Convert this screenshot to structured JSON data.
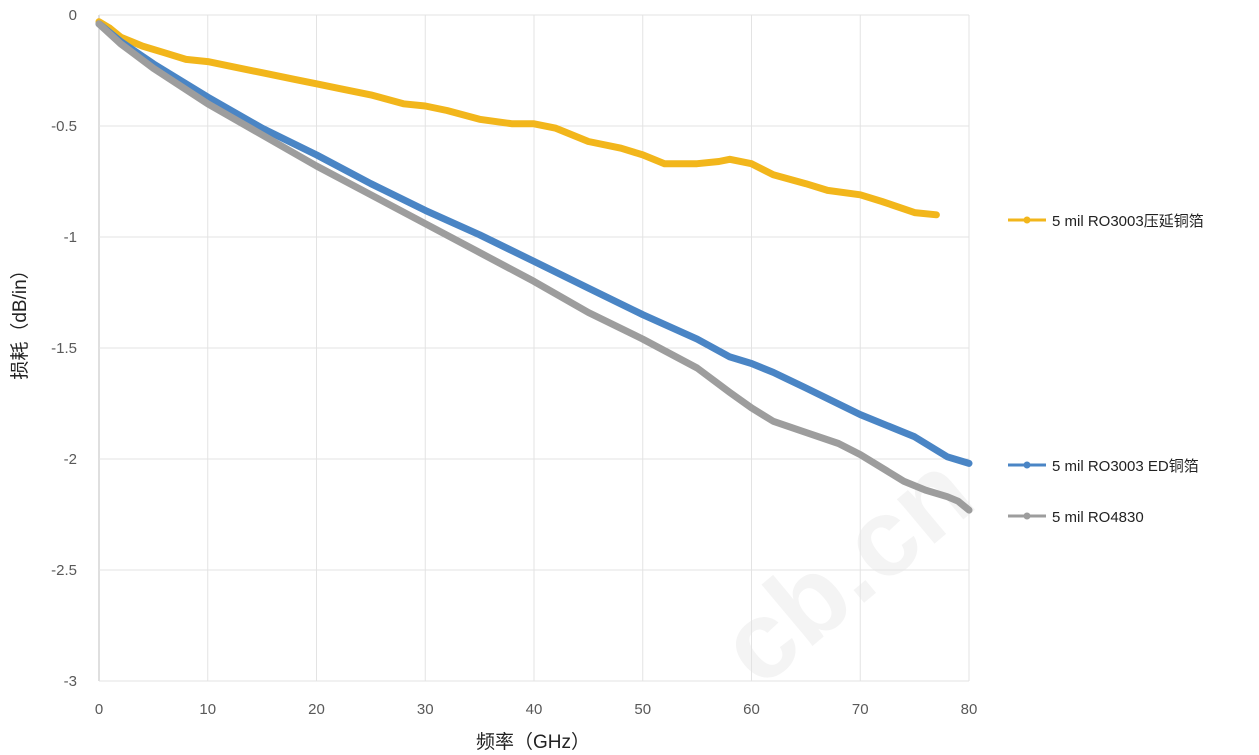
{
  "chart_data": {
    "type": "line",
    "xlabel": "频率（GHz）",
    "ylabel": "损耗（dB/in）",
    "xlim": [
      0,
      80
    ],
    "ylim": [
      -3,
      0
    ],
    "x_ticks": [
      "0",
      "10",
      "20",
      "30",
      "40",
      "50",
      "60",
      "70",
      "80"
    ],
    "y_ticks": [
      "0",
      "-0.5",
      "-1",
      "-1.5",
      "-2",
      "-2.5",
      "-3"
    ],
    "grid": true,
    "legend_position": "right",
    "series": [
      {
        "name": "5 mil RO3003压延铜箔",
        "color": "#f2b61b",
        "x": [
          0,
          1,
          2,
          3,
          4,
          6,
          8,
          10,
          12,
          15,
          18,
          20,
          22,
          25,
          28,
          30,
          32,
          35,
          38,
          40,
          42,
          45,
          48,
          50,
          52,
          55,
          57,
          58,
          60,
          62,
          65,
          67,
          70,
          72,
          75,
          77
        ],
        "y": [
          -0.03,
          -0.06,
          -0.1,
          -0.12,
          -0.14,
          -0.17,
          -0.2,
          -0.21,
          -0.23,
          -0.26,
          -0.29,
          -0.31,
          -0.33,
          -0.36,
          -0.4,
          -0.41,
          -0.43,
          -0.47,
          -0.49,
          -0.49,
          -0.51,
          -0.57,
          -0.6,
          -0.63,
          -0.67,
          -0.67,
          -0.66,
          -0.65,
          -0.67,
          -0.72,
          -0.76,
          -0.79,
          -0.81,
          -0.84,
          -0.89,
          -0.9
        ]
      },
      {
        "name": "5 mil RO3003 ED铜箔",
        "color": "#4a85c5",
        "x": [
          0,
          2,
          5,
          10,
          15,
          20,
          25,
          30,
          35,
          40,
          45,
          50,
          55,
          58,
          60,
          62,
          65,
          70,
          75,
          78,
          80
        ],
        "y": [
          -0.04,
          -0.12,
          -0.22,
          -0.37,
          -0.51,
          -0.63,
          -0.76,
          -0.88,
          -0.99,
          -1.11,
          -1.23,
          -1.35,
          -1.46,
          -1.54,
          -1.57,
          -1.61,
          -1.68,
          -1.8,
          -1.9,
          -1.99,
          -2.02
        ]
      },
      {
        "name": "5 mil RO4830",
        "color": "#9d9d9d",
        "x": [
          0,
          2,
          5,
          10,
          15,
          20,
          25,
          30,
          35,
          40,
          45,
          50,
          55,
          58,
          60,
          62,
          65,
          68,
          70,
          72,
          74,
          76,
          78,
          79,
          80
        ],
        "y": [
          -0.04,
          -0.13,
          -0.24,
          -0.4,
          -0.54,
          -0.68,
          -0.81,
          -0.94,
          -1.07,
          -1.2,
          -1.34,
          -1.46,
          -1.59,
          -1.7,
          -1.77,
          -1.83,
          -1.88,
          -1.93,
          -1.98,
          -2.04,
          -2.1,
          -2.14,
          -2.17,
          -2.19,
          -2.23
        ]
      }
    ],
    "watermark": "cb.cn"
  }
}
